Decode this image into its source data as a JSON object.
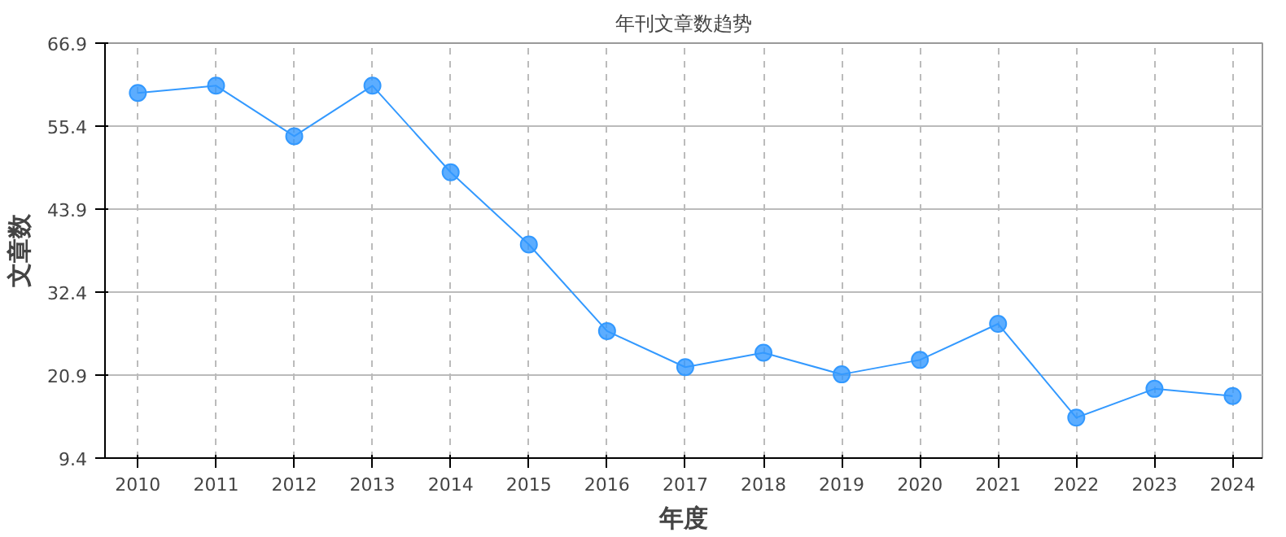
{
  "chart_data": {
    "type": "line",
    "title": "年刊文章数趋势",
    "xlabel": "年度",
    "ylabel": "文章数",
    "categories": [
      "2010",
      "2011",
      "2012",
      "2013",
      "2014",
      "2015",
      "2016",
      "2017",
      "2018",
      "2019",
      "2020",
      "2021",
      "2022",
      "2023",
      "2024"
    ],
    "series": [
      {
        "color": "#3399ff",
        "values": [
          60,
          61,
          54,
          61,
          49,
          39,
          27,
          22,
          24,
          21,
          23,
          28,
          15,
          19,
          18
        ]
      }
    ],
    "ylim": [
      9.4,
      66.9
    ],
    "yticks": [
      9.4,
      20.9,
      32.4,
      43.9,
      55.4,
      66.9
    ],
    "grid": true,
    "marker": "circle",
    "line_style": "solid"
  }
}
